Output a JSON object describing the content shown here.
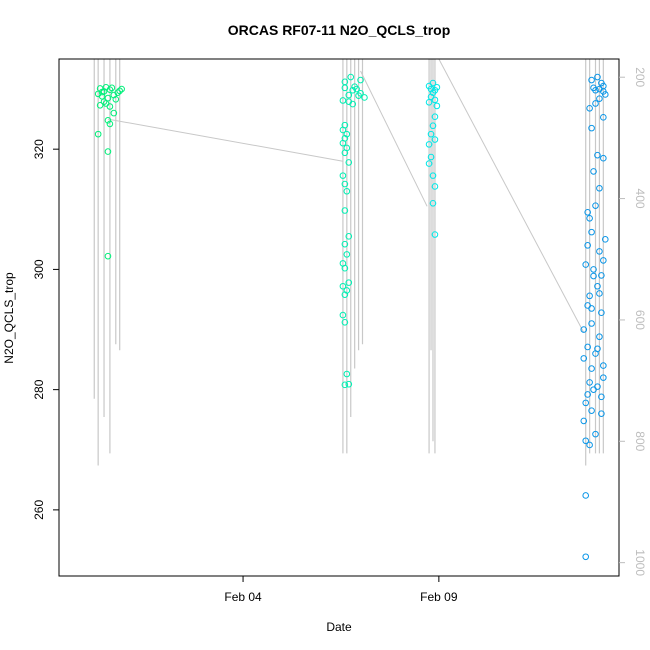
{
  "chart_data": {
    "type": "scatter",
    "title": "ORCAS RF07-11 N2O_QCLS_trop",
    "xlabel": "Date",
    "ylabel": "N2O_QCLS_trop",
    "x_ticks": [
      {
        "label": "Feb 04",
        "value": 4
      },
      {
        "label": "Feb 09",
        "value": 9
      }
    ],
    "xlim": [
      -0.7,
      13.6
    ],
    "ylim": [
      249,
      335
    ],
    "y_ticks": [
      260,
      280,
      300,
      320
    ],
    "y2_ticks": [
      200,
      400,
      600,
      800,
      1000
    ],
    "y2lim": [
      1022,
      170
    ],
    "y2_color": "#bdbdbd",
    "grid": false,
    "legend": "none",
    "series": [
      {
        "color": "#00f07a",
        "x_center": 0.55,
        "points": [
          [
            0.3,
            329.2
          ],
          [
            0.35,
            330.1
          ],
          [
            0.4,
            328.8
          ],
          [
            0.45,
            329.6
          ],
          [
            0.5,
            330.3
          ],
          [
            0.55,
            328.5
          ],
          [
            0.6,
            329.9
          ],
          [
            0.65,
            330.2
          ],
          [
            0.7,
            329.0
          ],
          [
            0.75,
            328.3
          ],
          [
            0.8,
            329.4
          ],
          [
            0.5,
            327.6
          ],
          [
            0.35,
            327.3
          ],
          [
            0.45,
            327.9
          ],
          [
            0.6,
            327.1
          ],
          [
            0.7,
            326.0
          ],
          [
            0.55,
            324.8
          ],
          [
            0.6,
            324.2
          ],
          [
            0.3,
            322.5
          ],
          [
            0.55,
            319.6
          ],
          [
            0.55,
            302.2
          ],
          [
            0.85,
            329.7
          ],
          [
            0.9,
            330.0
          ],
          [
            0.4,
            329.5
          ]
        ]
      },
      {
        "color": "#00f0b3",
        "x_center": 6.65,
        "points": [
          [
            6.6,
            330.2
          ],
          [
            6.8,
            329.8
          ],
          [
            6.9,
            330.0
          ],
          [
            7.0,
            329.3
          ],
          [
            7.1,
            328.6
          ],
          [
            6.7,
            329.0
          ],
          [
            6.85,
            330.4
          ],
          [
            6.55,
            328.1
          ],
          [
            6.7,
            327.9
          ],
          [
            6.8,
            327.5
          ],
          [
            6.6,
            331.2
          ],
          [
            6.75,
            332.0
          ],
          [
            7.0,
            331.5
          ],
          [
            6.95,
            328.9
          ],
          [
            6.6,
            324.0
          ],
          [
            6.55,
            323.2
          ],
          [
            6.65,
            322.5
          ],
          [
            6.6,
            321.8
          ],
          [
            6.55,
            321.0
          ],
          [
            6.65,
            320.2
          ],
          [
            6.6,
            319.4
          ],
          [
            6.7,
            317.8
          ],
          [
            6.55,
            315.6
          ],
          [
            6.6,
            314.2
          ],
          [
            6.65,
            313.0
          ],
          [
            6.6,
            309.8
          ],
          [
            6.7,
            305.5
          ],
          [
            6.6,
            304.2
          ],
          [
            6.65,
            302.5
          ],
          [
            6.55,
            301.0
          ],
          [
            6.6,
            300.2
          ],
          [
            6.7,
            297.8
          ],
          [
            6.55,
            297.2
          ],
          [
            6.65,
            296.5
          ],
          [
            6.6,
            295.8
          ],
          [
            6.55,
            292.4
          ],
          [
            6.6,
            291.2
          ],
          [
            6.65,
            282.6
          ],
          [
            6.6,
            280.8
          ],
          [
            6.7,
            280.9
          ]
        ]
      },
      {
        "color": "#00e8e8",
        "x_center": 8.85,
        "points": [
          [
            8.75,
            330.5
          ],
          [
            8.8,
            330.0
          ],
          [
            8.85,
            329.4
          ],
          [
            8.9,
            329.8
          ],
          [
            8.95,
            330.3
          ],
          [
            8.8,
            328.7
          ],
          [
            8.9,
            328.2
          ],
          [
            8.85,
            331.0
          ],
          [
            8.75,
            327.8
          ],
          [
            8.95,
            327.2
          ],
          [
            8.9,
            325.4
          ],
          [
            8.85,
            323.9
          ],
          [
            8.8,
            322.5
          ],
          [
            8.9,
            321.6
          ],
          [
            8.75,
            320.8
          ],
          [
            8.8,
            318.7
          ],
          [
            8.75,
            317.6
          ],
          [
            8.85,
            315.6
          ],
          [
            8.9,
            313.8
          ],
          [
            8.85,
            311.0
          ],
          [
            8.9,
            305.8
          ]
        ]
      },
      {
        "color": "#0a96e8",
        "x_center": 13.0,
        "points": [
          [
            13.1,
            330.0
          ],
          [
            13.2,
            329.6
          ],
          [
            12.95,
            330.2
          ],
          [
            13.0,
            329.8
          ],
          [
            13.15,
            331.0
          ],
          [
            12.9,
            331.5
          ],
          [
            13.05,
            332.0
          ],
          [
            13.2,
            330.5
          ],
          [
            13.25,
            329.1
          ],
          [
            13.1,
            328.4
          ],
          [
            13.0,
            327.6
          ],
          [
            12.85,
            326.8
          ],
          [
            13.2,
            325.3
          ],
          [
            12.9,
            323.5
          ],
          [
            13.05,
            319.0
          ],
          [
            13.2,
            318.5
          ],
          [
            12.95,
            316.3
          ],
          [
            13.1,
            313.5
          ],
          [
            13.0,
            310.6
          ],
          [
            12.8,
            309.5
          ],
          [
            12.85,
            308.5
          ],
          [
            12.9,
            306.2
          ],
          [
            13.1,
            303.0
          ],
          [
            12.75,
            300.8
          ],
          [
            12.95,
            298.9
          ],
          [
            13.05,
            297.2
          ],
          [
            12.85,
            295.6
          ],
          [
            12.8,
            294.0
          ],
          [
            13.15,
            292.8
          ],
          [
            12.9,
            291.0
          ],
          [
            13.1,
            288.8
          ],
          [
            12.8,
            287.1
          ],
          [
            13.0,
            286.0
          ],
          [
            12.7,
            285.2
          ],
          [
            12.9,
            283.5
          ],
          [
            13.2,
            282.0
          ],
          [
            13.05,
            280.5
          ],
          [
            12.8,
            279.2
          ],
          [
            13.15,
            278.8
          ],
          [
            12.75,
            277.8
          ],
          [
            12.9,
            276.5
          ],
          [
            12.7,
            274.8
          ],
          [
            13.0,
            272.6
          ],
          [
            12.75,
            271.5
          ],
          [
            12.85,
            270.8
          ],
          [
            12.75,
            262.4
          ],
          [
            12.75,
            252.2
          ],
          [
            13.25,
            305.0
          ],
          [
            12.7,
            290.0
          ],
          [
            13.1,
            296.0
          ],
          [
            12.95,
            300.0
          ],
          [
            13.2,
            301.5
          ],
          [
            12.8,
            304.0
          ],
          [
            13.15,
            299.0
          ],
          [
            12.9,
            293.5
          ],
          [
            13.05,
            286.8
          ],
          [
            13.2,
            284.0
          ],
          [
            12.85,
            281.2
          ],
          [
            13.15,
            276.0
          ],
          [
            12.95,
            280.0
          ]
        ]
      }
    ],
    "altitude_profile": [
      {
        "x": 0.2,
        "top": 170,
        "bottom": 730
      },
      {
        "x": 0.3,
        "top": 170,
        "bottom": 840
      },
      {
        "x": 0.45,
        "top": 170,
        "bottom": 760
      },
      {
        "x": 0.6,
        "top": 170,
        "bottom": 820
      },
      {
        "x": 0.75,
        "top": 170,
        "bottom": 640
      },
      {
        "x": 0.85,
        "top": 170,
        "bottom": 650
      },
      {
        "x": 6.55,
        "top": 170,
        "bottom": 820
      },
      {
        "x": 6.65,
        "top": 170,
        "bottom": 820
      },
      {
        "x": 6.75,
        "top": 170,
        "bottom": 760
      },
      {
        "x": 6.85,
        "top": 170,
        "bottom": 680
      },
      {
        "x": 6.95,
        "top": 170,
        "bottom": 650
      },
      {
        "x": 7.05,
        "top": 170,
        "bottom": 640
      },
      {
        "x": 8.75,
        "top": 170,
        "bottom": 820
      },
      {
        "x": 8.8,
        "top": 170,
        "bottom": 650
      },
      {
        "x": 8.85,
        "top": 170,
        "bottom": 800
      },
      {
        "x": 8.9,
        "top": 170,
        "bottom": 820
      },
      {
        "x": 12.75,
        "top": 170,
        "bottom": 840
      },
      {
        "x": 12.85,
        "top": 170,
        "bottom": 820
      },
      {
        "x": 13.0,
        "top": 170,
        "bottom": 820
      },
      {
        "x": 13.1,
        "top": 170,
        "bottom": 820
      },
      {
        "x": 13.2,
        "top": 170,
        "bottom": 820
      }
    ],
    "transit_lines": [
      [
        [
          0.55,
          325
        ],
        [
          6.55,
          318
        ]
      ],
      [
        [
          7.0,
          333
        ],
        [
          8.7,
          310.5
        ]
      ],
      [
        [
          9.0,
          335
        ],
        [
          12.7,
          289.5
        ]
      ]
    ]
  }
}
